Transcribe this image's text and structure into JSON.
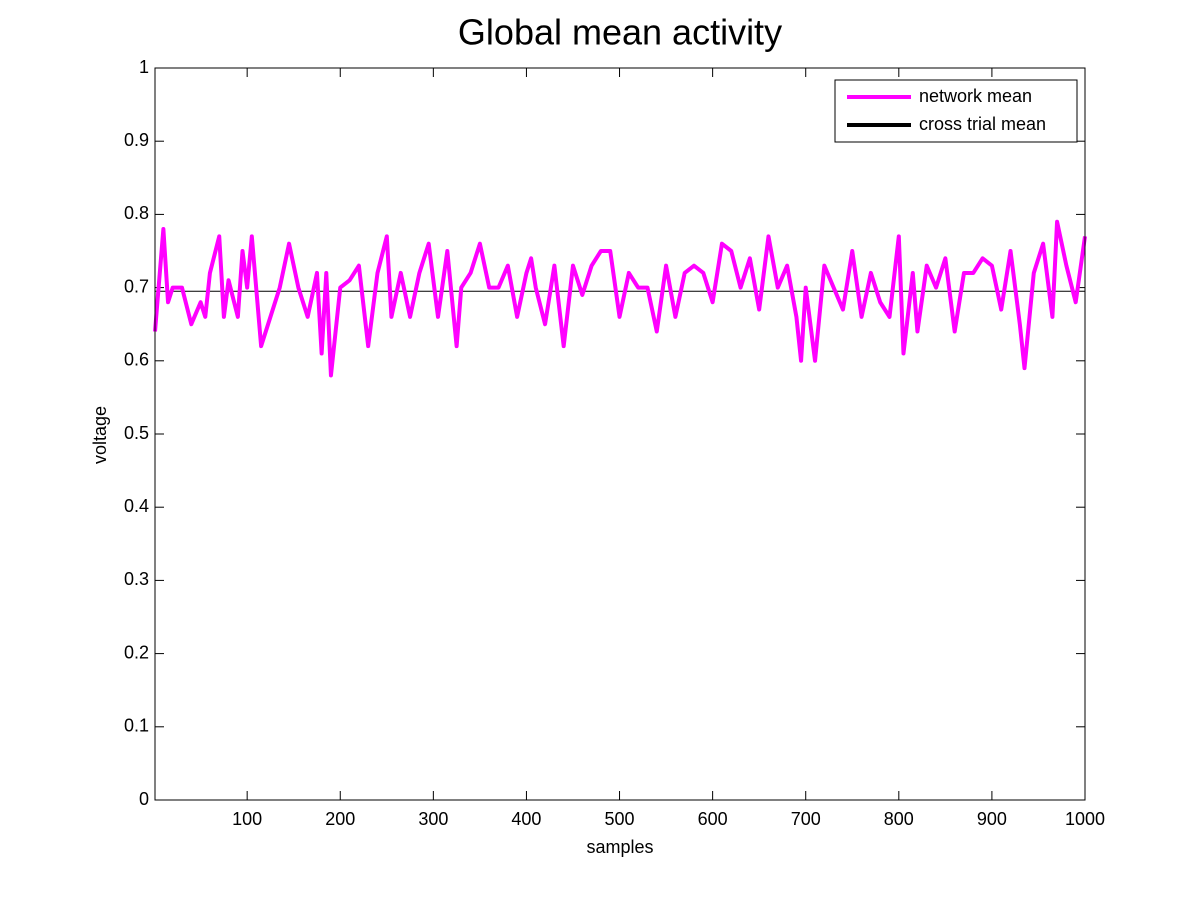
{
  "chart_data": {
    "type": "line",
    "title": "Global mean activity",
    "x_label": "samples",
    "y_label": "voltage",
    "xlim": [
      1,
      1000
    ],
    "ylim": [
      0,
      1
    ],
    "xticks": [
      100,
      200,
      300,
      400,
      500,
      600,
      700,
      800,
      900,
      1000
    ],
    "yticks": [
      0,
      0.1,
      0.2,
      0.3,
      0.4,
      0.5,
      0.6,
      0.7,
      0.8,
      0.9,
      1
    ],
    "grid": false,
    "legend": "upper right",
    "series": [
      {
        "name": "network mean",
        "color": "#ff00ff",
        "x": [
          1,
          10,
          15,
          20,
          30,
          40,
          50,
          55,
          60,
          70,
          75,
          80,
          90,
          95,
          100,
          105,
          115,
          125,
          135,
          145,
          155,
          165,
          175,
          180,
          185,
          190,
          200,
          210,
          220,
          230,
          240,
          250,
          255,
          265,
          275,
          285,
          295,
          305,
          315,
          325,
          330,
          340,
          350,
          360,
          370,
          380,
          390,
          400,
          405,
          410,
          420,
          430,
          440,
          450,
          460,
          470,
          480,
          490,
          500,
          510,
          520,
          530,
          540,
          550,
          560,
          570,
          580,
          590,
          600,
          610,
          620,
          630,
          640,
          650,
          660,
          670,
          680,
          690,
          695,
          700,
          710,
          720,
          730,
          740,
          750,
          760,
          770,
          780,
          790,
          800,
          805,
          815,
          820,
          830,
          840,
          850,
          860,
          870,
          880,
          890,
          900,
          910,
          920,
          930,
          935,
          945,
          955,
          965,
          970,
          980,
          990,
          1000
        ],
        "values": [
          0.64,
          0.78,
          0.68,
          0.7,
          0.7,
          0.65,
          0.68,
          0.66,
          0.72,
          0.77,
          0.66,
          0.71,
          0.66,
          0.75,
          0.7,
          0.77,
          0.62,
          0.66,
          0.7,
          0.76,
          0.7,
          0.66,
          0.72,
          0.61,
          0.72,
          0.58,
          0.7,
          0.71,
          0.73,
          0.62,
          0.72,
          0.77,
          0.66,
          0.72,
          0.66,
          0.72,
          0.76,
          0.66,
          0.75,
          0.62,
          0.7,
          0.72,
          0.76,
          0.7,
          0.7,
          0.73,
          0.66,
          0.72,
          0.74,
          0.7,
          0.65,
          0.73,
          0.62,
          0.73,
          0.69,
          0.73,
          0.75,
          0.75,
          0.66,
          0.72,
          0.7,
          0.7,
          0.64,
          0.73,
          0.66,
          0.72,
          0.73,
          0.72,
          0.68,
          0.76,
          0.75,
          0.7,
          0.74,
          0.67,
          0.77,
          0.7,
          0.73,
          0.66,
          0.6,
          0.7,
          0.6,
          0.73,
          0.7,
          0.67,
          0.75,
          0.66,
          0.72,
          0.68,
          0.66,
          0.77,
          0.61,
          0.72,
          0.64,
          0.73,
          0.7,
          0.74,
          0.64,
          0.72,
          0.72,
          0.74,
          0.73,
          0.67,
          0.75,
          0.65,
          0.59,
          0.72,
          0.76,
          0.66,
          0.79,
          0.73,
          0.68,
          0.77
        ]
      },
      {
        "name": "cross trial mean",
        "color": "#000000",
        "x": [
          1,
          1000
        ],
        "values": [
          0.695,
          0.695
        ]
      }
    ]
  }
}
